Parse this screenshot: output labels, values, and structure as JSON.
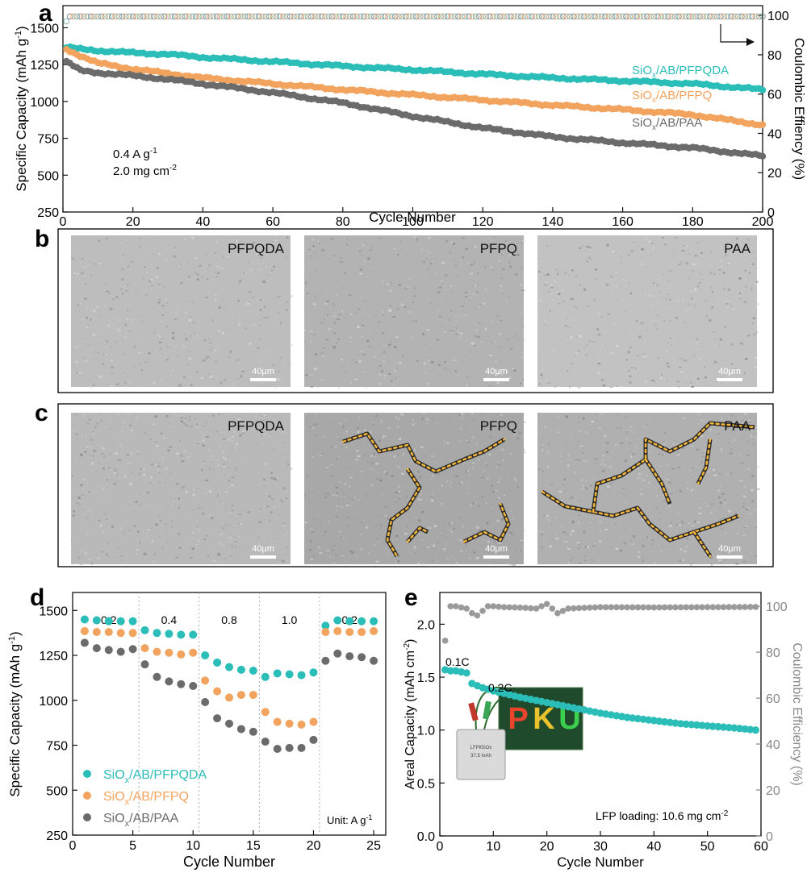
{
  "colors": {
    "pfpqda": "#2bbdb8",
    "pfpq": "#f2a35e",
    "paa": "#6b6b6b",
    "ce": "#8c8c8c",
    "ce_e": "#9a9a9a",
    "crack": "#f5b73a",
    "axis": "#111111"
  },
  "panel_a": {
    "letter": "a",
    "conditions": {
      "rate": "0.4 A g",
      "rate_sup": "-1",
      "loading": "2.0 mg cm",
      "loading_sup": "-2"
    },
    "arrow_icon": "arrow-right-icon"
  },
  "panel_b": {
    "letter": "b",
    "images": [
      {
        "label": "PFPQDA",
        "scale": "40μm",
        "tone": "#bdbdbd"
      },
      {
        "label": "PFPQ",
        "scale": "40μm",
        "tone": "#b3b3b3"
      },
      {
        "label": "PAA",
        "scale": "40μm",
        "tone": "#c2c2c2"
      }
    ]
  },
  "panel_c": {
    "letter": "c",
    "images": [
      {
        "label": "PFPQDA",
        "scale": "40μm",
        "tone": "#b9b9b9"
      },
      {
        "label": "PFPQ",
        "scale": "40μm",
        "tone": "#a8a8a8"
      },
      {
        "label": "PAA",
        "scale": "40μm",
        "tone": "#b0b0b0"
      }
    ]
  },
  "panel_d": {
    "letter": "d",
    "unit_note": "Unit: A g",
    "unit_note_sup": "-1",
    "rate_labels": [
      "0.2",
      "0.4",
      "0.8",
      "1.0",
      "0.2"
    ]
  },
  "panel_e": {
    "letter": "e",
    "rate_labels": [
      "0.1C",
      "0.2C"
    ],
    "loading_note": "LFP loading: 10.6 mg cm",
    "loading_note_sup": "-2",
    "photo": {
      "pouch_label": "LFP‖SiOx",
      "pouch_capacity": "37.5 mAh",
      "display_text": [
        "P",
        "K",
        "U"
      ]
    }
  },
  "chart_data": [
    {
      "id": "a",
      "type": "line",
      "title": "",
      "xlabel": "Cycle Number",
      "ylabel": "Specific Capacity (mAh g",
      "ylabel_sup": "-1",
      "y2label": "Coulombic Effiency (%)",
      "xlim": [
        0,
        200
      ],
      "ylim": [
        250,
        1650
      ],
      "y2lim": [
        0,
        105
      ],
      "xticks": [
        0,
        20,
        40,
        60,
        80,
        100,
        120,
        140,
        160,
        180,
        200
      ],
      "yticks": [
        250,
        500,
        750,
        1000,
        1250,
        1500
      ],
      "y2ticks": [
        0,
        20,
        40,
        60,
        80,
        100
      ],
      "series": [
        {
          "name": "SiO",
          "sub": "x",
          "rest": "/AB/PFPQDA",
          "key": "pfpqda",
          "x": [
            0,
            5,
            10,
            20,
            30,
            40,
            60,
            80,
            100,
            120,
            140,
            160,
            180,
            200
          ],
          "values": [
            1370,
            1355,
            1345,
            1330,
            1320,
            1300,
            1270,
            1240,
            1215,
            1185,
            1160,
            1140,
            1120,
            1080
          ]
        },
        {
          "name": "SiO",
          "sub": "x",
          "rest": "/AB/PFPQ",
          "key": "pfpq",
          "x": [
            0,
            5,
            10,
            20,
            30,
            40,
            60,
            80,
            100,
            120,
            140,
            160,
            180,
            200
          ],
          "values": [
            1365,
            1310,
            1260,
            1220,
            1190,
            1160,
            1120,
            1080,
            1045,
            1010,
            975,
            945,
            910,
            840
          ]
        },
        {
          "name": "SiO",
          "sub": "x",
          "rest": "/AB/PAA",
          "key": "paa",
          "x": [
            0,
            5,
            10,
            20,
            30,
            40,
            60,
            80,
            100,
            120,
            140,
            160,
            180,
            200
          ],
          "values": [
            1285,
            1210,
            1195,
            1175,
            1150,
            1120,
            1060,
            990,
            900,
            820,
            760,
            720,
            685,
            630
          ]
        }
      ],
      "ce_series": {
        "name": "Coulombic efficiency",
        "value": 99.5,
        "first": 97
      }
    },
    {
      "id": "d",
      "type": "scatter",
      "xlabel": "Cycle Number",
      "ylabel": "Specific Capacity (mAh g",
      "ylabel_sup": "-1",
      "xlim": [
        0,
        26
      ],
      "ylim": [
        250,
        1600
      ],
      "xticks": [
        0,
        5,
        10,
        15,
        20,
        25
      ],
      "yticks": [
        250,
        500,
        750,
        1000,
        1250,
        1500
      ],
      "rate_dividers": [
        5.5,
        10.5,
        15.5,
        20.5
      ],
      "rates": [
        0.2,
        0.4,
        0.8,
        1.0,
        0.2
      ],
      "x": [
        1,
        2,
        3,
        4,
        5,
        6,
        7,
        8,
        9,
        10,
        11,
        12,
        13,
        14,
        15,
        16,
        17,
        18,
        19,
        20,
        21,
        22,
        23,
        24,
        25
      ],
      "series": [
        {
          "name": "SiO",
          "sub": "x",
          "rest": "/AB/PFPQDA",
          "key": "pfpqda",
          "values": [
            1450,
            1445,
            1440,
            1440,
            1440,
            1390,
            1375,
            1370,
            1365,
            1365,
            1250,
            1210,
            1185,
            1170,
            1165,
            1130,
            1150,
            1145,
            1140,
            1155,
            1415,
            1445,
            1440,
            1440,
            1440
          ]
        },
        {
          "name": "SiO",
          "sub": "x",
          "rest": "/AB/PFPQ",
          "key": "pfpq",
          "values": [
            1385,
            1380,
            1380,
            1375,
            1375,
            1290,
            1270,
            1265,
            1255,
            1265,
            1110,
            1050,
            1015,
            1030,
            1030,
            935,
            880,
            870,
            865,
            880,
            1380,
            1385,
            1380,
            1380,
            1385
          ]
        },
        {
          "name": "SiO",
          "sub": "x",
          "rest": "/AB/PAA",
          "key": "paa",
          "values": [
            1320,
            1290,
            1280,
            1270,
            1285,
            1200,
            1130,
            1105,
            1090,
            1080,
            990,
            900,
            870,
            840,
            825,
            770,
            730,
            735,
            735,
            780,
            1220,
            1260,
            1245,
            1240,
            1220
          ]
        }
      ]
    },
    {
      "id": "e",
      "type": "scatter",
      "xlabel": "Cycle Number",
      "ylabel": "Areal Capacity (mAh cm",
      "ylabel_sup": "-2",
      "y2label": "Coulombic Efficiency (%)",
      "xlim": [
        0,
        60
      ],
      "ylim": [
        0,
        2.3
      ],
      "y2lim": [
        0,
        106
      ],
      "xticks": [
        0,
        10,
        20,
        30,
        40,
        50,
        60
      ],
      "yticks": [
        0.0,
        0.5,
        1.0,
        1.5,
        2.0
      ],
      "y2ticks": [
        0,
        20,
        40,
        60,
        80,
        100
      ],
      "capacity": {
        "x": [
          1,
          2,
          3,
          4,
          5,
          6,
          8,
          10,
          15,
          20,
          25,
          30,
          35,
          40,
          45,
          50,
          55,
          59
        ],
        "values": [
          1.57,
          1.56,
          1.56,
          1.55,
          1.54,
          1.44,
          1.4,
          1.37,
          1.31,
          1.26,
          1.21,
          1.16,
          1.12,
          1.09,
          1.06,
          1.04,
          1.02,
          1.0
        ]
      },
      "ce": {
        "x": [
          1,
          2,
          3,
          4,
          5,
          6,
          7,
          8,
          9,
          10,
          12,
          14,
          16,
          18,
          19,
          20,
          21,
          22,
          24,
          30,
          40,
          50,
          59
        ],
        "values": [
          85,
          100,
          100,
          99.5,
          99,
          97,
          96,
          98,
          100,
          100,
          99.6,
          99.5,
          99.3,
          99,
          100,
          101,
          99,
          97,
          99,
          99.6,
          99.5,
          99.6,
          99.7
        ]
      }
    }
  ]
}
